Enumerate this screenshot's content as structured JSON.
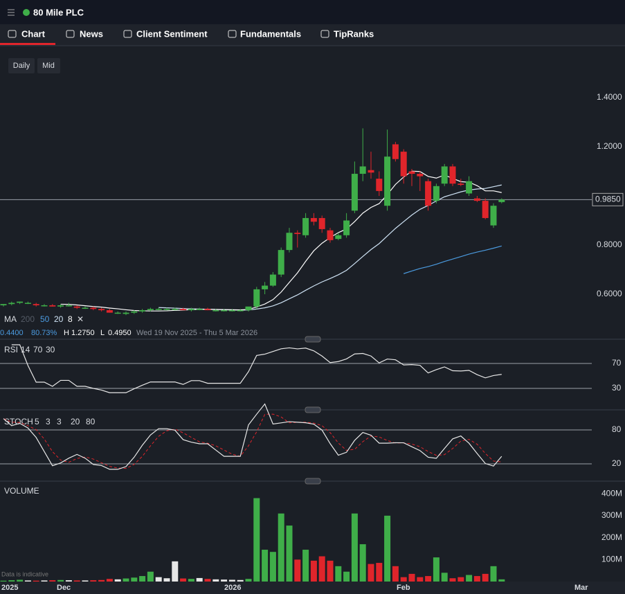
{
  "header": {
    "title": "80 Mile PLC"
  },
  "tabs": [
    "Chart",
    "News",
    "Client Sentiment",
    "Fundamentals",
    "TipRanks"
  ],
  "buttons": [
    "Daily",
    "Mid"
  ],
  "chart_data": {
    "type": "candlestick",
    "current_price": {
      "value": 0.985,
      "label": "0.9850"
    },
    "ylim": [
      0.48,
      1.55
    ],
    "yticks": [
      {
        "value": 1.4,
        "label": "1.4000"
      },
      {
        "value": 1.2,
        "label": "1.2000"
      },
      {
        "value": 0.8,
        "label": "0.8000"
      },
      {
        "value": 0.6,
        "label": "0.6000"
      }
    ],
    "up_color": "#3fae49",
    "down_color": "#e0252b",
    "candles": [
      [
        0.555,
        0.56,
        0.55,
        0.56
      ],
      [
        0.56,
        0.57,
        0.555,
        0.565
      ],
      [
        0.565,
        0.57,
        0.56,
        0.57
      ],
      [
        0.565,
        0.57,
        0.56,
        0.565
      ],
      [
        0.56,
        0.565,
        0.55,
        0.555
      ],
      [
        0.555,
        0.56,
        0.55,
        0.555
      ],
      [
        0.555,
        0.56,
        0.55,
        0.55
      ],
      [
        0.55,
        0.56,
        0.545,
        0.555
      ],
      [
        0.555,
        0.565,
        0.55,
        0.555
      ],
      [
        0.55,
        0.555,
        0.54,
        0.545
      ],
      [
        0.545,
        0.55,
        0.54,
        0.545
      ],
      [
        0.545,
        0.55,
        0.535,
        0.54
      ],
      [
        0.54,
        0.545,
        0.53,
        0.535
      ],
      [
        0.535,
        0.54,
        0.525,
        0.525
      ],
      [
        0.525,
        0.53,
        0.52,
        0.525
      ],
      [
        0.52,
        0.53,
        0.515,
        0.525
      ],
      [
        0.525,
        0.535,
        0.52,
        0.53
      ],
      [
        0.53,
        0.54,
        0.525,
        0.535
      ],
      [
        0.535,
        0.545,
        0.53,
        0.54
      ],
      [
        0.54,
        0.545,
        0.535,
        0.54
      ],
      [
        0.54,
        0.545,
        0.535,
        0.54
      ],
      [
        0.54,
        0.545,
        0.535,
        0.54
      ],
      [
        0.54,
        0.545,
        0.535,
        0.535
      ],
      [
        0.535,
        0.545,
        0.53,
        0.54
      ],
      [
        0.54,
        0.545,
        0.535,
        0.54
      ],
      [
        0.54,
        0.545,
        0.535,
        0.535
      ],
      [
        0.535,
        0.54,
        0.53,
        0.535
      ],
      [
        0.535,
        0.54,
        0.53,
        0.535
      ],
      [
        0.535,
        0.54,
        0.53,
        0.535
      ],
      [
        0.535,
        0.54,
        0.53,
        0.535
      ],
      [
        0.535,
        0.54,
        0.53,
        0.55
      ],
      [
        0.55,
        0.63,
        0.54,
        0.62
      ],
      [
        0.62,
        0.65,
        0.6,
        0.635
      ],
      [
        0.635,
        0.69,
        0.63,
        0.68
      ],
      [
        0.68,
        0.79,
        0.67,
        0.78
      ],
      [
        0.78,
        0.87,
        0.77,
        0.85
      ],
      [
        0.85,
        0.86,
        0.79,
        0.845
      ],
      [
        0.84,
        0.93,
        0.83,
        0.91
      ],
      [
        0.91,
        0.93,
        0.88,
        0.895
      ],
      [
        0.91,
        0.92,
        0.85,
        0.865
      ],
      [
        0.86,
        0.87,
        0.81,
        0.82
      ],
      [
        0.825,
        0.85,
        0.82,
        0.84
      ],
      [
        0.84,
        0.93,
        0.83,
        0.9
      ],
      [
        0.94,
        1.14,
        0.93,
        1.09
      ],
      [
        1.09,
        1.275,
        1.06,
        1.12
      ],
      [
        1.105,
        1.18,
        1.07,
        1.095
      ],
      [
        1.07,
        1.1,
        1.0,
        1.02
      ],
      [
        0.96,
        1.27,
        0.94,
        1.16
      ],
      [
        1.21,
        1.22,
        1.14,
        1.15
      ],
      [
        1.18,
        1.19,
        1.05,
        1.08
      ],
      [
        1.1,
        1.11,
        1.04,
        1.09
      ],
      [
        1.09,
        1.1,
        1.02,
        1.08
      ],
      [
        1.06,
        1.07,
        0.94,
        0.96
      ],
      [
        0.98,
        1.05,
        0.97,
        1.04
      ],
      [
        1.05,
        1.13,
        1.04,
        1.12
      ],
      [
        1.12,
        1.13,
        1.04,
        1.05
      ],
      [
        1.05,
        1.07,
        1.04,
        1.045
      ],
      [
        1.01,
        1.08,
        1.0,
        1.06
      ],
      [
        0.99,
        1.0,
        0.975,
        0.98
      ],
      [
        0.98,
        0.99,
        0.905,
        0.91
      ],
      [
        0.88,
        0.97,
        0.87,
        0.96
      ],
      [
        0.975,
        0.99,
        0.97,
        0.985
      ]
    ],
    "volume": [
      4000000,
      6000000,
      8000000,
      5000000,
      4000000,
      5000000,
      6000000,
      7000000,
      6000000,
      5000000,
      5000000,
      6000000,
      7000000,
      12000000,
      10000000,
      14000000,
      18000000,
      25000000,
      45000000,
      20000000,
      15000000,
      92000000,
      14000000,
      12000000,
      16000000,
      12000000,
      10000000,
      9000000,
      8000000,
      7000000,
      12000000,
      380000000,
      145000000,
      135000000,
      310000000,
      255000000,
      100000000,
      145000000,
      95000000,
      115000000,
      95000000,
      70000000,
      45000000,
      310000000,
      170000000,
      80000000,
      85000000,
      300000000,
      70000000,
      20000000,
      35000000,
      20000000,
      25000000,
      110000000,
      40000000,
      15000000,
      20000000,
      30000000,
      25000000,
      35000000,
      70000000,
      10000000
    ],
    "volume_ylim": [
      0,
      410000000
    ],
    "volume_ticks": [
      {
        "value": 400000000,
        "label": "400M"
      },
      {
        "value": 300000000,
        "label": "300M"
      },
      {
        "value": 200000000,
        "label": "200M"
      },
      {
        "value": 100000000,
        "label": "100M"
      }
    ],
    "ma": {
      "label": "MA",
      "periods": [
        200,
        50,
        20,
        8
      ],
      "colors": [
        "#2f5f9a",
        "#4b9be0",
        "#cfe3f5",
        "#ffffff"
      ]
    },
    "info": {
      "change": "0.4400",
      "change_pct": "80.73%",
      "high_label": "H",
      "high": "1.2750",
      "low_label": "L",
      "low": "0.4950",
      "range": "Wed 19 Nov 2025 - Thu 5 Mar 2026"
    },
    "rsi": {
      "label": "RSI",
      "params": [
        14,
        70,
        30
      ],
      "ticks": [
        70,
        30
      ]
    },
    "stoch": {
      "label": "STOCH",
      "params": [
        5,
        3,
        3,
        20,
        80
      ],
      "ticks": [
        80,
        20
      ]
    },
    "volume_label": "VOLUME",
    "note": "Data is indicative",
    "x_labels": [
      "2025",
      "Dec",
      "2026",
      "Feb",
      "Mar"
    ]
  }
}
